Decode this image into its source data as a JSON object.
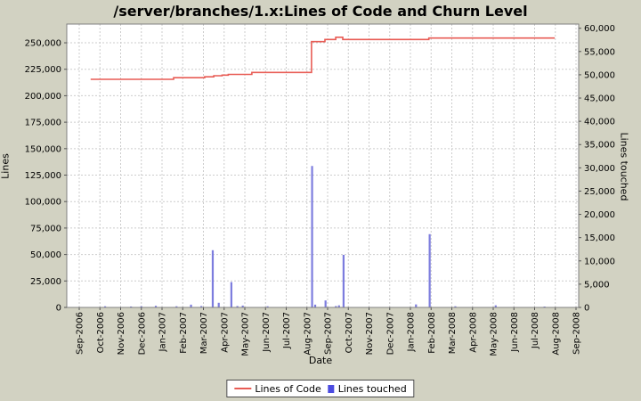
{
  "title": "/server/branches/1.x:Lines of Code and Churn Level",
  "colors": {
    "background": "#d2d2c2",
    "plot_background": "#ffffff",
    "grid": "#cccccc",
    "plot_border": "#808080",
    "tick": "#555555",
    "line_series": "#e85c55",
    "bar_series": "#7d7dde",
    "legend_bar_swatch": "#4b4be0"
  },
  "legend": {
    "items": [
      {
        "label": "Lines of Code",
        "type": "line"
      },
      {
        "label": "Lines touched",
        "type": "square"
      }
    ]
  },
  "axes": {
    "x": {
      "label": "Date",
      "tick_labels": [
        "Sep-2006",
        "Oct-2006",
        "Nov-2006",
        "Dec-2006",
        "Jan-2007",
        "Feb-2007",
        "Mar-2007",
        "Apr-2007",
        "May-2007",
        "Jun-2007",
        "Jul-2007",
        "Aug-2007",
        "Sep-2007",
        "Oct-2007",
        "Nov-2007",
        "Dec-2007",
        "Jan-2008",
        "Feb-2008",
        "Mar-2008",
        "Apr-2008",
        "May-2008",
        "Jun-2008",
        "Jul-2008",
        "Aug-2008",
        "Sep-2008"
      ]
    },
    "y_left": {
      "label": "Lines",
      "tick_values": [
        0,
        25000,
        50000,
        75000,
        100000,
        125000,
        150000,
        175000,
        200000,
        225000,
        250000
      ],
      "tick_labels": [
        "0",
        "25,000",
        "50,000",
        "75,000",
        "100,000",
        "125,000",
        "150,000",
        "175,000",
        "200,000",
        "225,000",
        "250,000"
      ],
      "range": [
        0,
        267700
      ]
    },
    "y_right": {
      "label": "Lines touched",
      "tick_values": [
        0,
        5000,
        10000,
        15000,
        20000,
        25000,
        30000,
        35000,
        40000,
        45000,
        50000,
        55000,
        60000
      ],
      "tick_labels": [
        "0",
        "5,000",
        "10,000",
        "15,000",
        "20,000",
        "25,000",
        "30,000",
        "35,000",
        "40,000",
        "45,000",
        "50,000",
        "55,000",
        "60,000"
      ],
      "range": [
        0,
        60900
      ]
    }
  },
  "chart_data": {
    "type": "line+bar",
    "x_unit": "months since Sep-2006 (0 = Sep-2006 tick, 24 = Sep-2008 tick)",
    "x_range": [
      -0.6,
      24.13
    ],
    "grid": true,
    "legend_position": "bottom",
    "series": [
      {
        "name": "Lines of Code",
        "type": "line",
        "axis": "left",
        "points": [
          [
            0.55,
            215500
          ],
          [
            4.56,
            215500
          ],
          [
            4.56,
            217000
          ],
          [
            6.06,
            217000
          ],
          [
            6.06,
            217900
          ],
          [
            6.5,
            217900
          ],
          [
            6.5,
            218900
          ],
          [
            6.9,
            218900
          ],
          [
            6.9,
            219500
          ],
          [
            7.2,
            219500
          ],
          [
            7.2,
            220100
          ],
          [
            8.34,
            220100
          ],
          [
            8.34,
            222000
          ],
          [
            11.22,
            222000
          ],
          [
            11.22,
            251100
          ],
          [
            11.87,
            251100
          ],
          [
            11.87,
            253100
          ],
          [
            12.39,
            253100
          ],
          [
            12.39,
            255200
          ],
          [
            12.73,
            255200
          ],
          [
            12.73,
            253100
          ],
          [
            16.89,
            253100
          ],
          [
            16.89,
            254500
          ],
          [
            22.97,
            254500
          ]
        ]
      },
      {
        "name": "Lines touched",
        "type": "bar",
        "axis": "right",
        "points": [
          [
            1.25,
            250
          ],
          [
            2.5,
            200
          ],
          [
            3.0,
            250
          ],
          [
            3.7,
            350
          ],
          [
            4.7,
            250
          ],
          [
            5.4,
            600
          ],
          [
            5.9,
            300
          ],
          [
            6.45,
            12300
          ],
          [
            6.74,
            1000
          ],
          [
            7.35,
            5450
          ],
          [
            7.64,
            300
          ],
          [
            7.9,
            400
          ],
          [
            9.1,
            250
          ],
          [
            11.25,
            30400
          ],
          [
            11.4,
            600
          ],
          [
            11.9,
            1500
          ],
          [
            12.4,
            300
          ],
          [
            12.55,
            450
          ],
          [
            12.77,
            11300
          ],
          [
            16.27,
            650
          ],
          [
            16.93,
            15750
          ],
          [
            18.17,
            250
          ],
          [
            20.12,
            450
          ],
          [
            22.48,
            150
          ]
        ]
      }
    ]
  }
}
